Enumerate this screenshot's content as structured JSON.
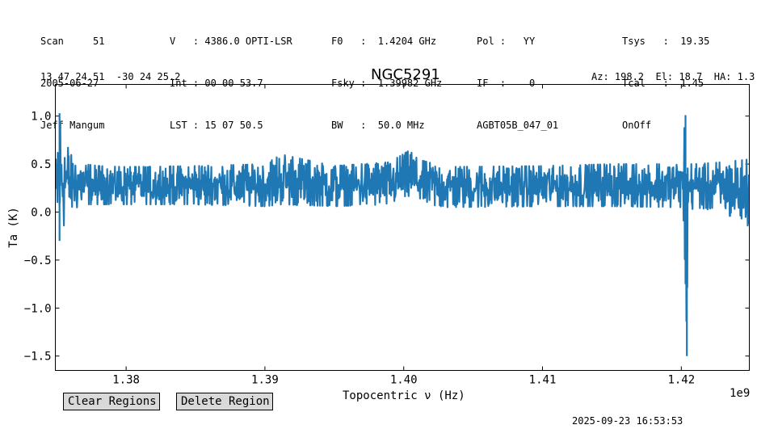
{
  "header": {
    "col1": [
      "Scan     51",
      "2005-06-27",
      "Jeff Mangum"
    ],
    "col2": [
      "V   : 4386.0 OPTI-LSR",
      "Int : 00 00 53.7",
      "LST : 15 07 50.5"
    ],
    "col3": [
      "F0   :  1.4204 GHz",
      "Fsky :  1.39982 GHz",
      "BW   :  50.0 MHz"
    ],
    "col4": [
      "Pol :   YY",
      "IF  :    0",
      "AGBT05B_047_01"
    ],
    "col5": [
      "Tsys   :  19.35",
      "Tcal   :  1.45",
      "OnOff"
    ],
    "coords": "13 47 24.51  -30 24 25.2",
    "azel": "Az: 198.2  El: 18.7  HA: 1.3"
  },
  "buttons": {
    "clear": "Clear Regions",
    "delete": "Delete Region"
  },
  "timestamp": "2025-09-23 16:53:53",
  "chart_data": {
    "type": "line",
    "title": "NGC5291",
    "xlabel": "Topocentric ν (Hz)",
    "ylabel": "Ta (K)",
    "x_offset_label": "1e9",
    "xlim": [
      1.3749,
      1.4249
    ],
    "ylim": [
      -1.65,
      1.33
    ],
    "xticks": [
      1.38,
      1.39,
      1.4,
      1.41,
      1.42
    ],
    "xtick_labels": [
      "1.38",
      "1.39",
      "1.40",
      "1.41",
      "1.42"
    ],
    "yticks": [
      -1.5,
      -1.0,
      -0.5,
      0.0,
      0.5,
      1.0
    ],
    "ytick_labels": [
      "−1.5",
      "−1.0",
      "−0.5",
      "0.0",
      "0.5",
      "1.0"
    ],
    "line_color": "#1f77b4",
    "series": [
      {
        "x": [
          1.375,
          1.3752,
          1.3754,
          1.3757,
          1.376,
          1.3765,
          1.377,
          1.378,
          1.38,
          1.385,
          1.39,
          1.3912,
          1.395,
          1.399,
          1.4005,
          1.401,
          1.403,
          1.41,
          1.415,
          1.42,
          1.4203,
          1.4204,
          1.4205,
          1.421,
          1.423,
          1.4249
        ],
        "y_mean": [
          0.3,
          0.32,
          0.34,
          0.3,
          0.3,
          0.28,
          0.27,
          0.27,
          0.27,
          0.27,
          0.27,
          0.27,
          0.27,
          0.3,
          0.4,
          0.33,
          0.27,
          0.27,
          0.27,
          0.27,
          0.27,
          0.2,
          0.27,
          0.27,
          0.26,
          0.25
        ],
        "y_max": [
          1.0,
          1.03,
          0.95,
          0.72,
          0.6,
          0.55,
          0.5,
          0.48,
          0.47,
          0.48,
          0.5,
          0.6,
          0.48,
          0.52,
          0.65,
          0.55,
          0.47,
          0.48,
          0.5,
          0.5,
          1.01,
          0.4,
          0.5,
          0.5,
          0.52,
          0.55
        ],
        "y_min": [
          -0.35,
          -0.3,
          -0.2,
          -0.05,
          0.02,
          0.05,
          0.08,
          0.08,
          0.08,
          0.08,
          0.06,
          0.08,
          0.06,
          0.08,
          0.16,
          0.1,
          0.05,
          0.06,
          0.06,
          0.05,
          -0.75,
          -1.5,
          0.0,
          0.05,
          0.0,
          -0.15
        ]
      }
    ]
  }
}
